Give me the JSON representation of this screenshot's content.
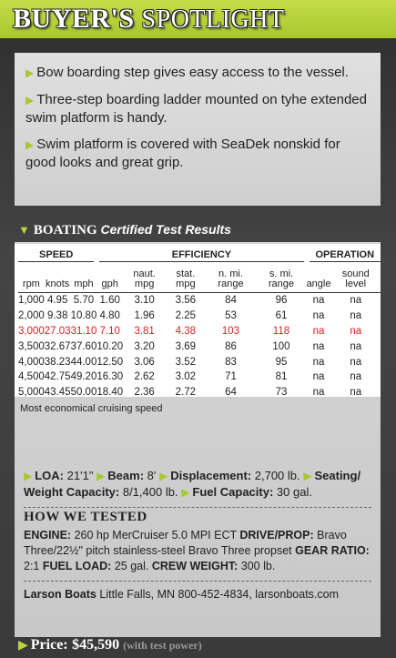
{
  "header": {
    "title_bold": "BUYER'S",
    "title_rest": "SPOTLIGHT"
  },
  "highlights": [
    "Bow boarding step gives easy access to the vessel.",
    "Three-step boarding ladder mounted on tyhe extended swim platform is handy.",
    "Swim platform is covered with SeaDek nonskid for good looks and great grip."
  ],
  "test_results": {
    "brand": "BOATING",
    "title": "Certified Test Results",
    "groups": [
      {
        "label": "SPEED",
        "span": 3
      },
      {
        "label": "EFFICIENCY",
        "span": 5
      },
      {
        "label": "OPERATION",
        "span": 2
      }
    ],
    "columns": [
      "rpm",
      "knots",
      "mph",
      "gph",
      "naut. mpg",
      "stat. mpg",
      "n. mi. range",
      "s. mi. range",
      "angle",
      "sound level"
    ],
    "rows": [
      [
        "1,000",
        "4.95",
        "5.70",
        "1.60",
        "3.10",
        "3.56",
        "84",
        "96",
        "na",
        "na"
      ],
      [
        "2,000",
        "9.38",
        "10.80",
        "4.80",
        "1.96",
        "2.25",
        "53",
        "61",
        "na",
        "na"
      ],
      [
        "3,000",
        "27.03",
        "31.10",
        "7.10",
        "3.81",
        "4.38",
        "103",
        "118",
        "na",
        "na"
      ],
      [
        "3,500",
        "32.67",
        "37.60",
        "10.20",
        "3.20",
        "3.69",
        "86",
        "100",
        "na",
        "na"
      ],
      [
        "4,000",
        "38.23",
        "44.00",
        "12.50",
        "3.06",
        "3.52",
        "83",
        "95",
        "na",
        "na"
      ],
      [
        "4,500",
        "42.75",
        "49.20",
        "16.30",
        "2.62",
        "3.02",
        "71",
        "81",
        "na",
        "na"
      ],
      [
        "5,000",
        "43.45",
        "50.00",
        "18.40",
        "2.36",
        "2.72",
        "64",
        "73",
        "na",
        "na"
      ]
    ],
    "highlight_row": 2,
    "footnote": "Most economical cruising speed"
  },
  "specs": [
    {
      "label": "LOA:",
      "value": "21'1\""
    },
    {
      "label": "Beam:",
      "value": "8'"
    },
    {
      "label": "Displacement:",
      "value": "2,700 lb."
    },
    {
      "label": "Seating/ Weight Capacity:",
      "value": "8/1,400 lb."
    },
    {
      "label": "Fuel Capacity:",
      "value": "30 gal."
    }
  ],
  "how_we_tested": {
    "title": "HOW WE TESTED",
    "items": [
      {
        "label": "ENGINE:",
        "value": "260 hp MerCruiser 5.0 MPI ECT"
      },
      {
        "label": "DRIVE/PROP:",
        "value": "Bravo Three/22½\" pitch stainless-steel Bravo Three propset"
      },
      {
        "label": "GEAR RATIO:",
        "value": "2:1"
      },
      {
        "label": "FUEL LOAD:",
        "value": "25 gal."
      },
      {
        "label": "CREW WEIGHT:",
        "value": "300 lb."
      }
    ]
  },
  "contact": {
    "name": "Larson Boats",
    "details": "Little Falls, MN 800-452-4834, larsonboats.com"
  },
  "price": {
    "label": "Price:",
    "value": "$45,590",
    "note": "(with test power)"
  }
}
